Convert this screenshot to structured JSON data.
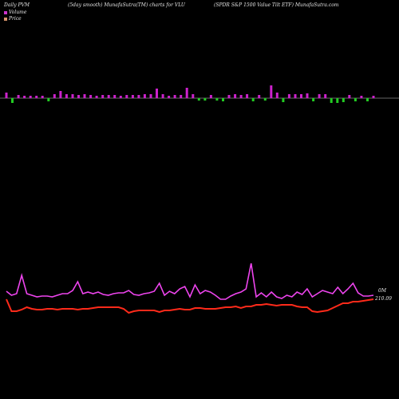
{
  "header": {
    "left": "Daily PVM",
    "middle": "(5day smooth) MunafaSutra(TM) charts for VLU",
    "right": "(SPDR S&amp;P 1500  Value   Tilt ETF) MunafaSutra.com"
  },
  "legend": {
    "items": [
      {
        "label": "Volume",
        "color": "#cc33cc"
      },
      {
        "label": "Price",
        "color": "#d9956b"
      }
    ]
  },
  "colors": {
    "background": "#000000",
    "volume_up": "#cc22cc",
    "volume_down": "#22cc22",
    "volume_baseline": "#cccccc",
    "volume_line": "#ee44ee",
    "price_line": "#ff2a1a"
  },
  "chart_data": {
    "type": "line",
    "last_price_label": "210.09",
    "last_volume_label": "0M",
    "volume_bars": [
      {
        "v": 0.7,
        "dir": "up"
      },
      {
        "v": 0.6,
        "dir": "down"
      },
      {
        "v": 0.4,
        "dir": "up"
      },
      {
        "v": 0.3,
        "dir": "up"
      },
      {
        "v": 0.3,
        "dir": "up"
      },
      {
        "v": 0.3,
        "dir": "up"
      },
      {
        "v": 0.3,
        "dir": "up"
      },
      {
        "v": 0.4,
        "dir": "down"
      },
      {
        "v": 0.5,
        "dir": "up"
      },
      {
        "v": 0.9,
        "dir": "up"
      },
      {
        "v": 0.5,
        "dir": "up"
      },
      {
        "v": 0.5,
        "dir": "up"
      },
      {
        "v": 0.4,
        "dir": "up"
      },
      {
        "v": 0.5,
        "dir": "up"
      },
      {
        "v": 0.4,
        "dir": "up"
      },
      {
        "v": 0.3,
        "dir": "up"
      },
      {
        "v": 0.4,
        "dir": "up"
      },
      {
        "v": 0.4,
        "dir": "up"
      },
      {
        "v": 0.4,
        "dir": "up"
      },
      {
        "v": 0.3,
        "dir": "up"
      },
      {
        "v": 0.4,
        "dir": "up"
      },
      {
        "v": 0.4,
        "dir": "up"
      },
      {
        "v": 0.4,
        "dir": "up"
      },
      {
        "v": 0.5,
        "dir": "up"
      },
      {
        "v": 0.5,
        "dir": "up"
      },
      {
        "v": 1.2,
        "dir": "up"
      },
      {
        "v": 0.5,
        "dir": "up"
      },
      {
        "v": 0.3,
        "dir": "up"
      },
      {
        "v": 0.4,
        "dir": "up"
      },
      {
        "v": 0.4,
        "dir": "up"
      },
      {
        "v": 1.3,
        "dir": "up"
      },
      {
        "v": 0.5,
        "dir": "up"
      },
      {
        "v": 0.3,
        "dir": "down"
      },
      {
        "v": 0.3,
        "dir": "down"
      },
      {
        "v": 0.4,
        "dir": "up"
      },
      {
        "v": 0.3,
        "dir": "down"
      },
      {
        "v": 0.4,
        "dir": "down"
      },
      {
        "v": 0.4,
        "dir": "up"
      },
      {
        "v": 0.5,
        "dir": "up"
      },
      {
        "v": 0.4,
        "dir": "up"
      },
      {
        "v": 0.5,
        "dir": "up"
      },
      {
        "v": 0.4,
        "dir": "down"
      },
      {
        "v": 0.4,
        "dir": "up"
      },
      {
        "v": 0.3,
        "dir": "down"
      },
      {
        "v": 1.6,
        "dir": "up"
      },
      {
        "v": 0.7,
        "dir": "up"
      },
      {
        "v": 0.5,
        "dir": "down"
      },
      {
        "v": 0.5,
        "dir": "up"
      },
      {
        "v": 0.5,
        "dir": "up"
      },
      {
        "v": 0.5,
        "dir": "up"
      },
      {
        "v": 0.6,
        "dir": "up"
      },
      {
        "v": 0.4,
        "dir": "down"
      },
      {
        "v": 0.5,
        "dir": "up"
      },
      {
        "v": 0.5,
        "dir": "up"
      },
      {
        "v": 0.6,
        "dir": "down"
      },
      {
        "v": 0.6,
        "dir": "down"
      },
      {
        "v": 0.5,
        "dir": "down"
      },
      {
        "v": 0.4,
        "dir": "up"
      },
      {
        "v": 0.4,
        "dir": "down"
      },
      {
        "v": 0.3,
        "dir": "up"
      },
      {
        "v": 0.4,
        "dir": "down"
      },
      {
        "v": 0.3,
        "dir": "up"
      }
    ],
    "volume_line": [
      365,
      370,
      368,
      345,
      368,
      370,
      372,
      371,
      371,
      372,
      370,
      368,
      368,
      364,
      353,
      368,
      366,
      368,
      366,
      369,
      370,
      368,
      367,
      367,
      364,
      369,
      370,
      368,
      367,
      365,
      355,
      370,
      365,
      368,
      362,
      359,
      372,
      357,
      368,
      364,
      366,
      370,
      375,
      375,
      371,
      368,
      366,
      362,
      330,
      372,
      367,
      372,
      366,
      372,
      374,
      370,
      372,
      366,
      369,
      362,
      372,
      368,
      364,
      366,
      368,
      360,
      368,
      362,
      355,
      367,
      371,
      371,
      370
    ],
    "price_line": [
      375,
      390,
      390,
      388,
      385,
      387,
      388,
      388,
      387,
      387,
      388,
      387,
      387,
      387,
      388,
      387,
      387,
      386,
      385,
      385,
      385,
      385,
      385,
      387,
      392,
      390,
      389,
      389,
      389,
      389,
      391,
      389,
      389,
      388,
      387,
      388,
      388,
      386,
      386,
      387,
      387,
      387,
      386,
      385,
      385,
      384,
      386,
      384,
      384,
      382,
      382,
      381,
      382,
      383,
      382,
      382,
      382,
      384,
      385,
      385,
      390,
      391,
      390,
      389,
      386,
      383,
      380,
      380,
      378,
      378,
      377,
      376,
      375
    ]
  }
}
